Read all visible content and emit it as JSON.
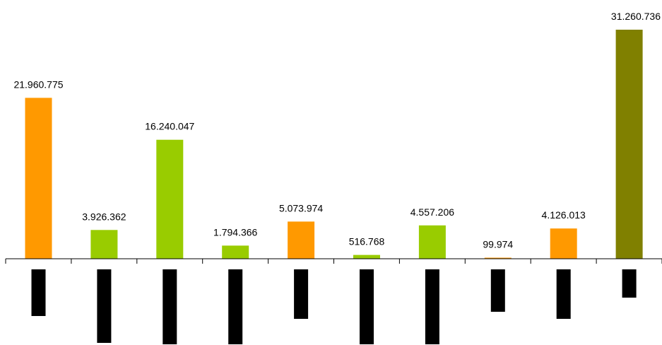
{
  "chart_data": {
    "type": "bar",
    "categories": [
      "",
      "",
      "",
      "",
      "",
      "",
      "",
      "",
      "",
      ""
    ],
    "values": [
      21960775,
      3926362,
      16240047,
      1794366,
      5073974,
      516768,
      4557206,
      99974,
      4126013,
      31260736
    ],
    "value_labels": [
      "21.960.775",
      "3.926.362",
      "16.240.047",
      "1.794.366",
      "5.073.974",
      "516.768",
      "4.557.206",
      "99.974",
      "4.126.013",
      "31.260.736"
    ],
    "bar_colors": [
      "#ff9900",
      "#99cc00",
      "#99cc00",
      "#99cc00",
      "#ff9900",
      "#99cc00",
      "#99cc00",
      "#ff9900",
      "#ff9900",
      "#808000"
    ],
    "ylim": [
      0,
      31260736
    ],
    "grid": false,
    "legend": "none",
    "title": "",
    "xlabel": "",
    "ylabel": "",
    "category_labels_obscured": true
  }
}
